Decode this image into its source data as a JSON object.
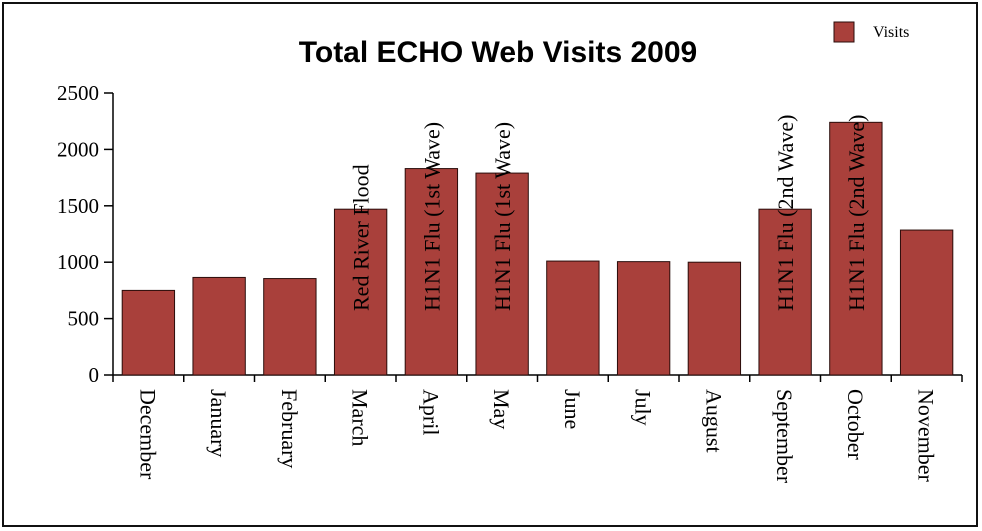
{
  "chart_data": {
    "type": "bar",
    "title": "Total ECHO Web Visits 2009",
    "xlabel": "",
    "ylabel": "",
    "ylim": [
      0,
      2500
    ],
    "yticks": [
      0,
      500,
      1000,
      1500,
      2000,
      2500
    ],
    "categories": [
      "December",
      "January",
      "February",
      "March",
      "April",
      "May",
      "June",
      "July",
      "August",
      "September",
      "October",
      "November"
    ],
    "series": [
      {
        "name": "Visits",
        "color": "#a9403b",
        "values": [
          750,
          865,
          855,
          1470,
          1830,
          1790,
          1010,
          1005,
          1000,
          1470,
          2240,
          1285
        ]
      }
    ],
    "annotations": [
      "",
      "",
      "",
      "Red River Flood",
      "H1N1 Flu (1st Wave)",
      "H1N1 Flu (1st Wave)",
      "",
      "",
      "",
      "H1N1 Flu (2nd Wave)",
      "H1N1 Flu (2nd Wave)",
      ""
    ],
    "legend": {
      "position": "top-right",
      "entries": [
        "Visits"
      ]
    },
    "grid": false
  }
}
